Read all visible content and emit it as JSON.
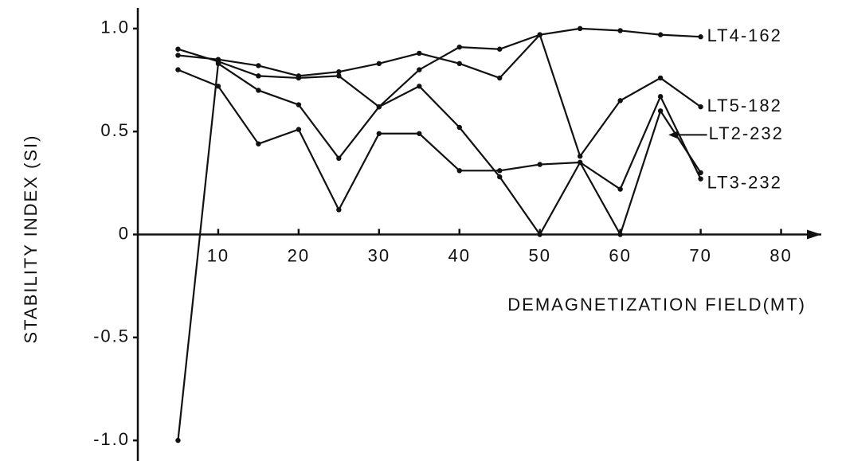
{
  "chart_data": {
    "type": "line",
    "x_label": "DEMAGNETIZATION FIELD(MT)",
    "y_label": "STABILITY INDEX (SI)",
    "x": [
      5,
      10,
      15,
      20,
      25,
      30,
      35,
      40,
      45,
      50,
      55,
      60,
      65,
      70
    ],
    "series": [
      {
        "name": "LT4-162",
        "color": "#111111",
        "values": [
          0.87,
          0.85,
          0.82,
          0.77,
          0.79,
          0.83,
          0.88,
          0.83,
          0.76,
          0.97,
          1.0,
          0.99,
          0.97,
          0.96
        ]
      },
      {
        "name": "LT5-182",
        "color": "#111111",
        "values": [
          0.9,
          0.84,
          0.77,
          0.76,
          0.77,
          0.62,
          0.8,
          0.91,
          0.9,
          0.97,
          0.38,
          0.65,
          0.76,
          0.62
        ]
      },
      {
        "name": "LT2-232",
        "color": "#111111",
        "values": [
          -1.0,
          0.83,
          0.7,
          0.63,
          0.37,
          0.62,
          0.72,
          0.52,
          0.28,
          0.0,
          0.35,
          0.0,
          0.6,
          0.3
        ]
      },
      {
        "name": "LT3-232",
        "color": "#111111",
        "values": [
          0.8,
          0.72,
          0.44,
          0.51,
          0.12,
          0.49,
          0.49,
          0.31,
          0.31,
          0.34,
          0.35,
          0.22,
          0.67,
          0.27
        ]
      }
    ],
    "xlim": [
      0,
      85
    ],
    "ylim": [
      -1.1,
      1.1
    ],
    "xticks": [
      10,
      20,
      30,
      40,
      50,
      60,
      70,
      80
    ],
    "yticks": [
      {
        "value": -1,
        "label": "-1.0"
      },
      -0.5,
      0,
      0.5,
      {
        "value": 1,
        "label": "1.0"
      }
    ]
  }
}
